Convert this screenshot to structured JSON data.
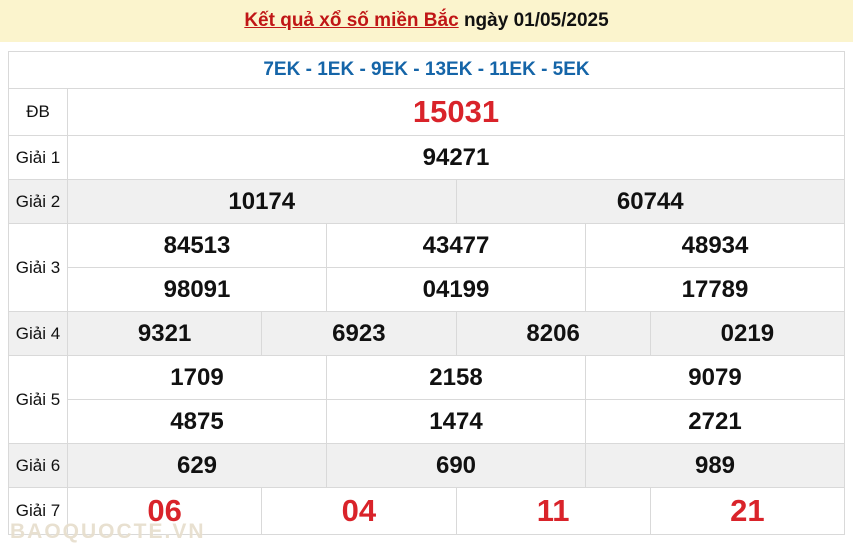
{
  "header": {
    "title": "Kết quả xổ số miền Bắc",
    "date_label": " ngày 01/05/2025"
  },
  "table": {
    "ek_line": "7EK - 1EK - 9EK - 13EK - 11EK - 5EK",
    "rows": [
      {
        "label": "ĐB",
        "special": true,
        "gray": false,
        "db": true,
        "groups": [
          [
            "15031"
          ]
        ]
      },
      {
        "label": "Giải 1",
        "special": false,
        "gray": false,
        "db": false,
        "groups": [
          [
            "94271"
          ]
        ]
      },
      {
        "label": "Giải 2",
        "special": false,
        "gray": true,
        "db": false,
        "groups": [
          [
            "10174",
            "60744"
          ]
        ]
      },
      {
        "label": "Giải 3",
        "special": false,
        "gray": false,
        "db": false,
        "groups": [
          [
            "84513",
            "43477",
            "48934"
          ],
          [
            "98091",
            "04199",
            "17789"
          ]
        ]
      },
      {
        "label": "Giải 4",
        "special": false,
        "gray": true,
        "db": false,
        "groups": [
          [
            "9321",
            "6923",
            "8206",
            "0219"
          ]
        ]
      },
      {
        "label": "Giải 5",
        "special": false,
        "gray": false,
        "db": false,
        "groups": [
          [
            "1709",
            "2158",
            "9079"
          ],
          [
            "4875",
            "1474",
            "2721"
          ]
        ]
      },
      {
        "label": "Giải 6",
        "special": false,
        "gray": true,
        "db": false,
        "groups": [
          [
            "629",
            "690",
            "989"
          ]
        ]
      },
      {
        "label": "Giải 7",
        "special": true,
        "gray": false,
        "db": false,
        "groups": [
          [
            "06",
            "04",
            "11",
            "21"
          ]
        ]
      }
    ]
  },
  "watermark": "BAOQUOCTE.VN",
  "colors": {
    "header_bg": "#fbf4cd",
    "title_red": "#c01616",
    "value_red": "#d9232a",
    "ek_blue": "#1565a8",
    "gray_row": "#f0f0f0",
    "border": "#d9d9d9"
  }
}
